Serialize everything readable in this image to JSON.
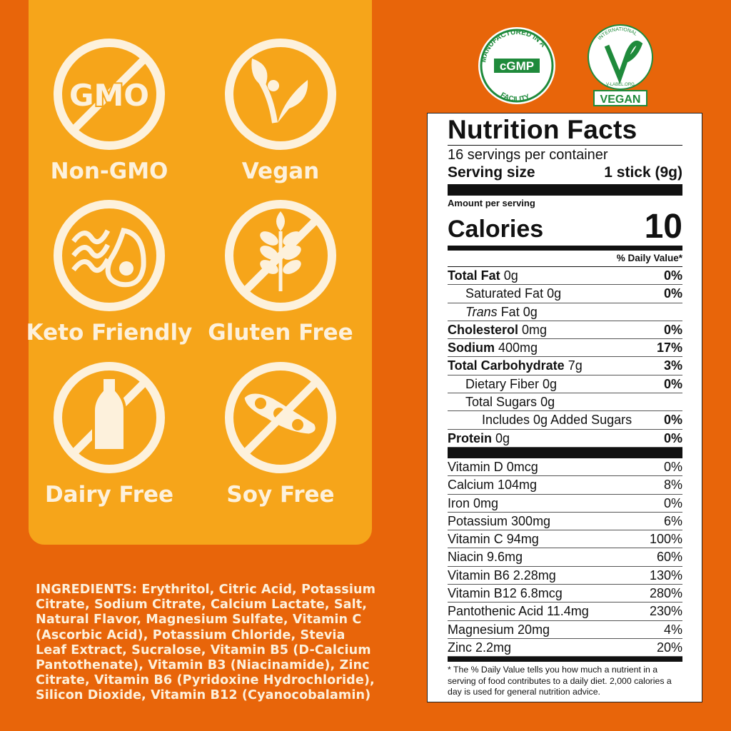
{
  "badges": [
    {
      "label": "Non-GMO",
      "icon": "gmo-crossed-icon",
      "icon_text": "GMO"
    },
    {
      "label": "Vegan",
      "icon": "vegan-sprout-icon"
    },
    {
      "label": "Keto Friendly",
      "icon": "avocado-bacon-icon"
    },
    {
      "label": "Gluten Free",
      "icon": "wheat-crossed-icon"
    },
    {
      "label": "Dairy Free",
      "icon": "milk-bottle-crossed-icon"
    },
    {
      "label": "Soy Free",
      "icon": "soybean-crossed-icon"
    }
  ],
  "certifications": {
    "cgmp": {
      "ring_text": "MANUFACTURED IN A FACILITY",
      "center": "cGMP"
    },
    "vegan": {
      "ring_top": "INTERNATIONAL",
      "ring_bottom": "V-LABEL.ORG",
      "label": "VEGAN"
    }
  },
  "colors": {
    "background": "#e8650a",
    "panel": "#f6a51a",
    "icon": "#fdf1dc",
    "cert_green": "#1f8a3b"
  },
  "nutrition": {
    "title": "Nutrition Facts",
    "servings": "16 servings per container",
    "serving_size_label": "Serving size",
    "serving_size_value": "1 stick (9g)",
    "amount_per_serving": "Amount per serving",
    "calories_label": "Calories",
    "calories_value": "10",
    "dv_header": "% Daily Value*",
    "rows": [
      {
        "name": "Total Fat",
        "amount": "0g",
        "dv": "0%",
        "bold": true,
        "indent": 0
      },
      {
        "name": "Saturated Fat",
        "amount": "0g",
        "dv": "0%",
        "bold": false,
        "indent": 1
      },
      {
        "name": "Trans",
        "name_suffix": " Fat",
        "amount": "0g",
        "dv": "",
        "bold": false,
        "indent": 1,
        "italic": true
      },
      {
        "name": "Cholesterol",
        "amount": "0mg",
        "dv": "0%",
        "bold": true,
        "indent": 0
      },
      {
        "name": "Sodium",
        "amount": "400mg",
        "dv": "17%",
        "bold": true,
        "indent": 0
      },
      {
        "name": "Total Carbohydrate",
        "amount": "7g",
        "dv": "3%",
        "bold": true,
        "indent": 0
      },
      {
        "name": "Dietary Fiber",
        "amount": "0g",
        "dv": "0%",
        "bold": false,
        "indent": 1
      },
      {
        "name": "Total Sugars",
        "amount": "0g",
        "dv": "",
        "bold": false,
        "indent": 1
      },
      {
        "name": "Includes 0g Added Sugars",
        "amount": "",
        "dv": "0%",
        "bold": false,
        "indent": 2
      },
      {
        "name": "Protein",
        "amount": "0g",
        "dv": "0%",
        "bold": true,
        "indent": 0
      }
    ],
    "vitamins": [
      {
        "name": "Vitamin D 0mcg",
        "dv": "0%"
      },
      {
        "name": "Calcium 104mg",
        "dv": "8%"
      },
      {
        "name": "Iron 0mg",
        "dv": "0%"
      },
      {
        "name": "Potassium 300mg",
        "dv": "6%"
      },
      {
        "name": "Vitamin C 94mg",
        "dv": "100%"
      },
      {
        "name": "Niacin 9.6mg",
        "dv": "60%"
      },
      {
        "name": "Vitamin B6 2.28mg",
        "dv": "130%"
      },
      {
        "name": "Vitamin B12 6.8mcg",
        "dv": "280%"
      },
      {
        "name": "Pantothenic Acid 11.4mg",
        "dv": "230%"
      },
      {
        "name": "Magnesium 20mg",
        "dv": "4%"
      },
      {
        "name": "Zinc 2.2mg",
        "dv": "20%"
      }
    ],
    "footnote": "* The % Daily Value tells you how much a nutrient in a serving of food contributes to a daily diet. 2,000 calories a day is used for general nutrition advice."
  },
  "ingredients": {
    "label": "INGREDIENTS:",
    "text": "Erythritol, Citric Acid, Potassium Citrate, Sodium Citrate, Calcium Lactate, Salt, Natural Flavor, Magnesium Sulfate, Vitamin C (Ascorbic Acid), Potassium Chloride, Stevia Leaf Extract, Sucralose, Vitamin B5 (D-Calcium Pantothenate), Vitamin B3 (Niacinamide), Zinc Citrate, Vitamin B6 (Pyridoxine Hydrochloride), Silicon Dioxide, Vitamin B12 (Cyanocobalamin)"
  }
}
